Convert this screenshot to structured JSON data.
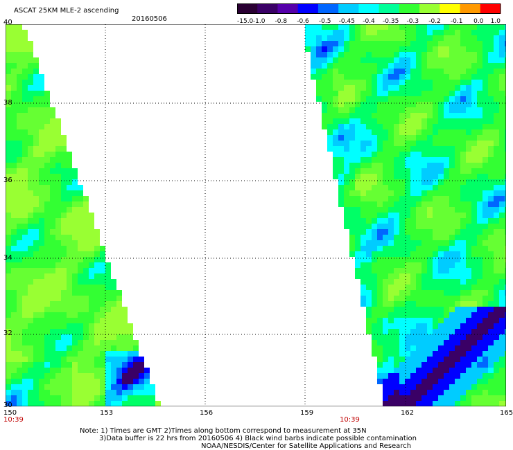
{
  "header": {
    "title": "ASCAT 25KM MLE-2 ascending",
    "date": "20160506"
  },
  "colorbar": {
    "labels": [
      "-15.0",
      "-1.0",
      "-0.8",
      "-0.6",
      "-0.5",
      "-0.45",
      "-0.4",
      "-0.35",
      "-0.3",
      "-0.2",
      "-0.1",
      "0.0",
      "1.0"
    ],
    "colors": [
      "#2a0033",
      "#3a0066",
      "#5500aa",
      "#0000ff",
      "#0066ff",
      "#00ccff",
      "#00ffff",
      "#00ff99",
      "#33ff33",
      "#99ff33",
      "#ffff00",
      "#ff9900",
      "#ff0000"
    ]
  },
  "map": {
    "x_axis": {
      "ticks": [
        "150",
        "153",
        "156",
        "159",
        "162",
        "165"
      ]
    },
    "y_axis": {
      "ticks": [
        "30",
        "32",
        "34",
        "36",
        "38",
        "40"
      ]
    },
    "swath_times": [
      "10:39",
      "10:39"
    ]
  },
  "notes": {
    "line1": "Note: 1) Times are GMT 2)Times along bottom correspond to measurement at 35N",
    "line2": "3)Data buffer is 22 hrs from 20160506 4) Black wind barbs indicate possible contamination",
    "line3": "NOAA/NESDIS/Center for Satellite Applications and Research"
  }
}
